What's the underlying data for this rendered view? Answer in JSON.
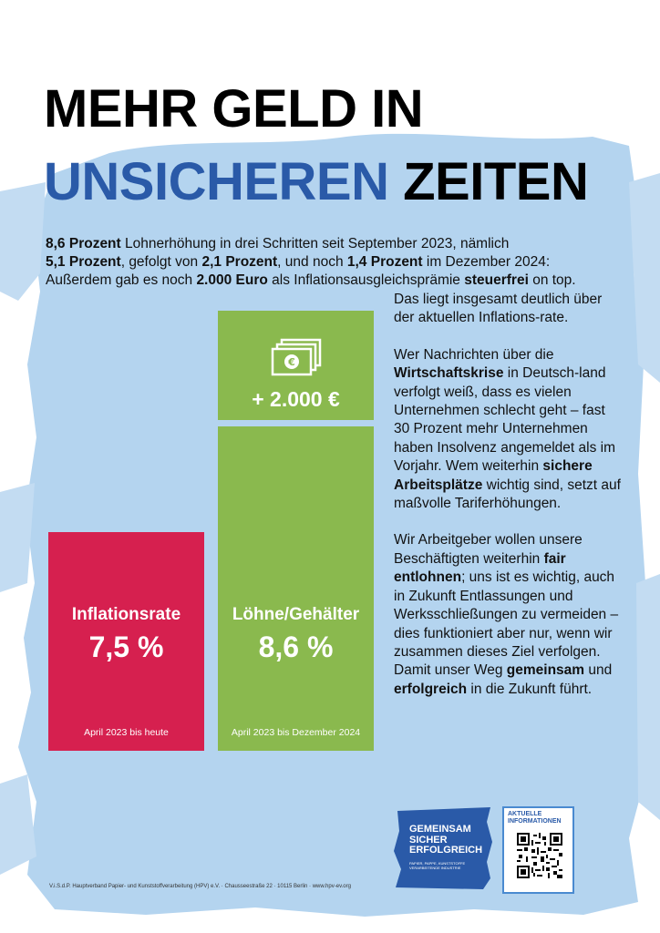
{
  "title": {
    "line1": "MEHR GELD IN",
    "line2_blue": "UNSICHEREN",
    "line2_black": "ZEITEN"
  },
  "intro": {
    "s1_bold": "8,6 Prozent",
    "s1": " Lohnerhöhung in drei Schritten seit September 2023, nämlich",
    "s2_bold": "5,1 Prozent",
    "s2": ", gefolgt von ",
    "s3_bold": "2,1 Prozent",
    "s3": ", und noch ",
    "s4_bold": "1,4 Prozent",
    "s4": " im Dezember 2024:",
    "s5": "Außerdem gab es noch ",
    "s5_bold": "2.000 Euro",
    "s6": " als Inflationsausgleichsprämie ",
    "s6_bold": "steuerfrei",
    "s7": " on top."
  },
  "body": {
    "p1": "Das liegt insgesamt deutlich über der aktuellen Inflations-rate.",
    "p2_a": "Wer Nachrichten über die ",
    "p2_bold": "Wirtschaftskrise",
    "p2_b": " in Deutsch-land verfolgt weiß, dass es vielen Unternehmen schlecht geht – fast 30 Prozent mehr Unternehmen haben Insolvenz angemeldet als im Vorjahr. Wem weiterhin ",
    "p2_bold2": "sichere Arbeitsplätze",
    "p2_c": " wichtig sind, setzt auf maßvolle Tariferhöhungen.",
    "p3_a": "Wir Arbeitgeber wollen unsere Beschäftigten weiterhin ",
    "p3_bold": "fair entlohnen",
    "p3_b": "; uns ist es wichtig, auch in Zukunft Entlassungen und Werksschließungen zu vermeiden – dies funktioniert aber nur, wenn wir zusammen dieses Ziel verfolgen. Damit unser Weg ",
    "p3_bold2": "gemeinsam",
    "p3_c": " und ",
    "p3_bold3": "erfolgreich",
    "p3_d": " in die Zukunft führt."
  },
  "bonus": {
    "amount": "+ 2.000 €",
    "icon": "banknotes-euro-icon"
  },
  "inflation": {
    "label": "Inflationsrate",
    "value": "7,5 %",
    "period": "April 2023 bis heute",
    "color": "#d6204f"
  },
  "wages": {
    "label": "Löhne/Gehälter",
    "value": "8,6 %",
    "period": "April 2023 bis Dezember 2024",
    "color": "#8ab94e"
  },
  "footer": {
    "imprint": "V.i.S.d.P. Hauptverband Papier- und Kunststoffverarbeitung (HPV) e.V. · Chausseestraße 22 · 10115 Berlin · www.hpv-ev.org"
  },
  "logo": {
    "line1": "GEMEINSAM",
    "line2": "SICHER",
    "line3": "ERFOLGREICH",
    "small": "PAPIER, PAPPE, KUNSTSTOFFE VERARBEITENDE INDUSTRIE"
  },
  "qr": {
    "title_line1": "AKTUELLE",
    "title_line2": "INFORMATIONEN"
  },
  "colors": {
    "brush_blue": "#b4d4ef",
    "title_blue": "#2a5aa8"
  }
}
